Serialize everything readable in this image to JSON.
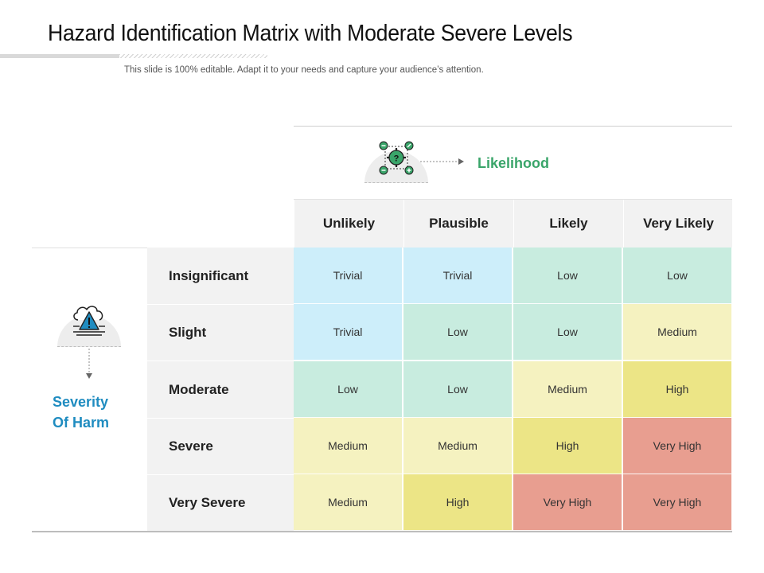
{
  "title": "Hazard Identification Matrix with Moderate Severe Levels",
  "subtitle": "This slide is 100% editable. Adapt it to your needs and capture your audience’s attention.",
  "likelihood_label": "Likelihood",
  "severity_label": [
    "Severity",
    "Of Harm"
  ],
  "columns": [
    "Unlikely",
    "Plausible",
    "Likely",
    "Very Likely"
  ],
  "rows": [
    {
      "label": "Insignificant",
      "cells": [
        "Trivial",
        "Trivial",
        "Low",
        "Low"
      ]
    },
    {
      "label": "Slight",
      "cells": [
        "Trivial",
        "Low",
        "Low",
        "Medium"
      ]
    },
    {
      "label": "Moderate",
      "cells": [
        "Low",
        "Low",
        "Medium",
        "High"
      ]
    },
    {
      "label": "Severe",
      "cells": [
        "Medium",
        "Medium",
        "High",
        "Very High"
      ]
    },
    {
      "label": "Very Severe",
      "cells": [
        "Medium",
        "High",
        "Very High",
        "Very High"
      ]
    }
  ],
  "level_colors": {
    "Trivial": "#cdeefa",
    "Low": "#c8ecdf",
    "Medium": "#f5f2c0",
    "High": "#ece586",
    "Very High": "#e89e90"
  },
  "icons": {
    "likelihood": "gear-question-icon",
    "severity": "cloud-warning-icon"
  }
}
